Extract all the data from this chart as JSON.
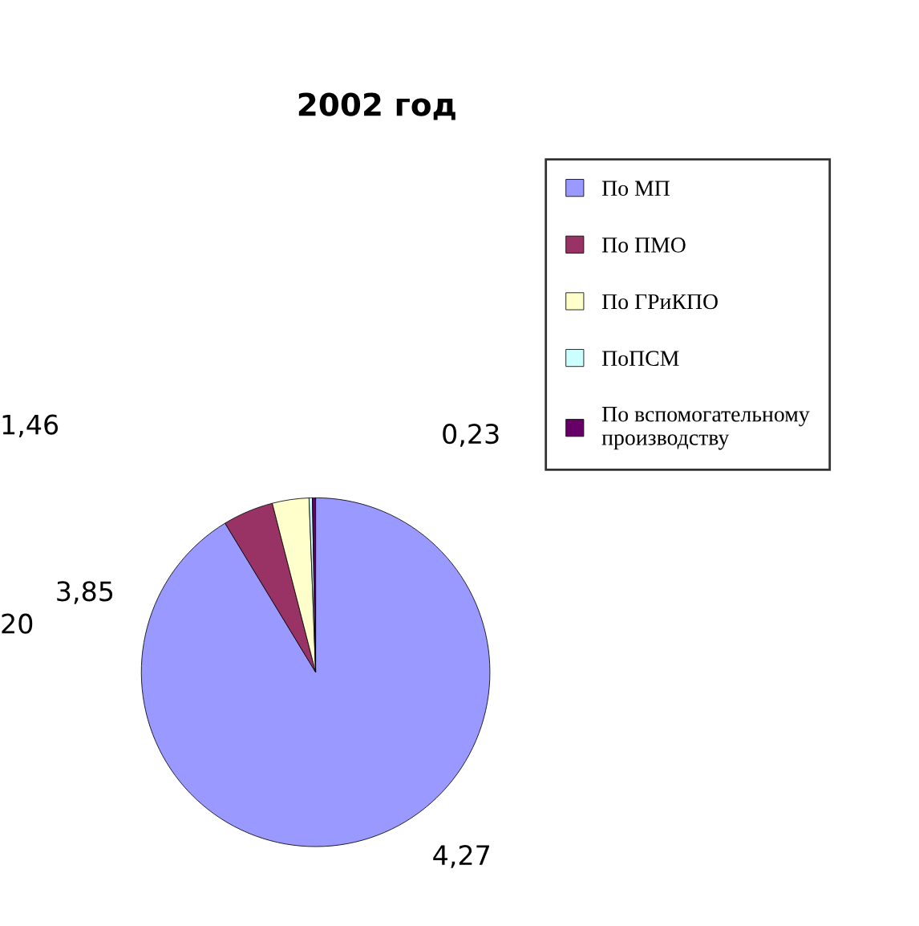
{
  "chart_data": {
    "type": "pie",
    "title": "2002 год",
    "categories": [
      "По МП",
      "По ПМО",
      "По ГРиКПО",
      "ПоПСМ",
      "По вспомогательному производству"
    ],
    "values": [
      91.3,
      4.7,
      3.4,
      0.3,
      0.3
    ],
    "colors": [
      "#9999ff",
      "#993366",
      "#ffffcc",
      "#ccffff",
      "#660066"
    ],
    "annotations": [
      "4,27",
      "1,46",
      "3,85",
      "20",
      "0,23"
    ],
    "legend": "top right"
  }
}
